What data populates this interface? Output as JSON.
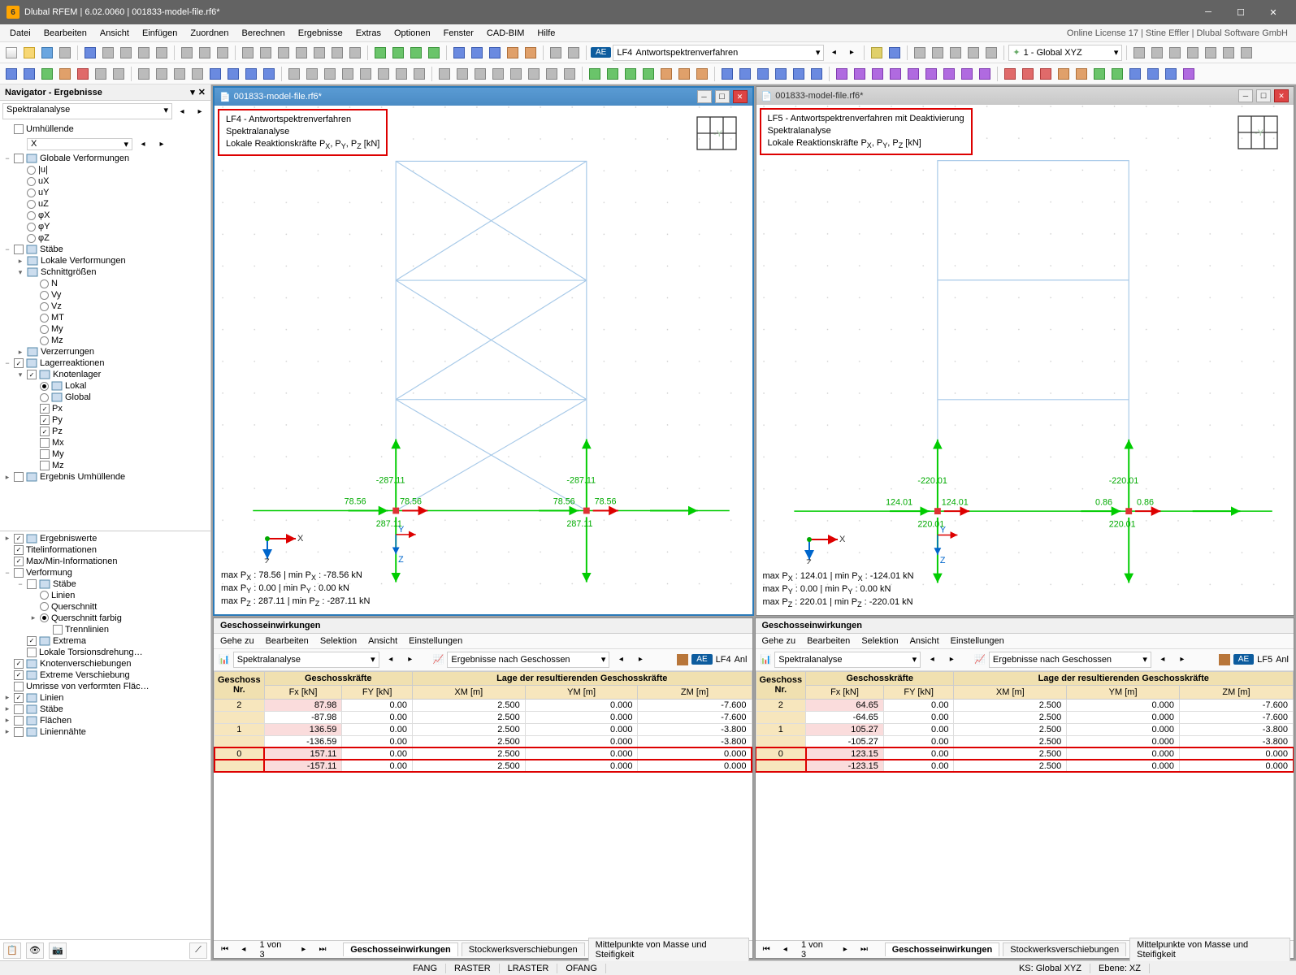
{
  "window": {
    "title": "Dlubal RFEM | 6.02.0060 | 001833-model-file.rf6*",
    "license": "Online License 17 | Stine Effler | Dlubal Software GmbH"
  },
  "menu": [
    "Datei",
    "Bearbeiten",
    "Ansicht",
    "Einfügen",
    "Zuordnen",
    "Berechnen",
    "Ergebnisse",
    "Extras",
    "Optionen",
    "Fenster",
    "CAD-BIM",
    "Hilfe"
  ],
  "tb1": {
    "pill": "AE",
    "lf": "LF4",
    "lfname": "Antwortspektrenverfahren",
    "global": "1 - Global XYZ"
  },
  "navigator": {
    "title": "Navigator - Ergebnisse",
    "combo": "Spektralanalyse",
    "tree": [
      {
        "d": 0,
        "exp": "",
        "chk": "off",
        "t": "Umhüllende"
      },
      {
        "d": 1,
        "exp": "",
        "cmb": "X"
      },
      {
        "d": 0,
        "exp": "−",
        "chk": "off",
        "t": "Globale Verformungen",
        "ico": "g"
      },
      {
        "d": 1,
        "rad": "off",
        "t": "|u|"
      },
      {
        "d": 1,
        "rad": "off",
        "t": "uX"
      },
      {
        "d": 1,
        "rad": "off",
        "t": "uY"
      },
      {
        "d": 1,
        "rad": "off",
        "t": "uZ"
      },
      {
        "d": 1,
        "rad": "off",
        "t": "φX"
      },
      {
        "d": 1,
        "rad": "off",
        "t": "φY"
      },
      {
        "d": 1,
        "rad": "off",
        "t": "φZ"
      },
      {
        "d": 0,
        "exp": "−",
        "chk": "off",
        "t": "Stäbe",
        "ico": "m"
      },
      {
        "d": 1,
        "exp": "▸",
        "t": "Lokale Verformungen",
        "ico": "lv"
      },
      {
        "d": 1,
        "exp": "▾",
        "t": "Schnittgrößen",
        "ico": "sg"
      },
      {
        "d": 2,
        "rad": "off",
        "t": "N"
      },
      {
        "d": 2,
        "rad": "off",
        "t": "Vy"
      },
      {
        "d": 2,
        "rad": "off",
        "t": "Vz"
      },
      {
        "d": 2,
        "rad": "off",
        "t": "MT"
      },
      {
        "d": 2,
        "rad": "off",
        "t": "My"
      },
      {
        "d": 2,
        "rad": "off",
        "t": "Mz"
      },
      {
        "d": 1,
        "exp": "▸",
        "t": "Verzerrungen",
        "ico": "vz"
      },
      {
        "d": 0,
        "exp": "−",
        "chk": "on",
        "t": "Lagerreaktionen",
        "ico": "lr"
      },
      {
        "d": 1,
        "exp": "▾",
        "chk": "on",
        "t": "Knotenlager",
        "ico": "kn"
      },
      {
        "d": 2,
        "rad": "on",
        "t": "Lokal",
        "ico": "ax"
      },
      {
        "d": 2,
        "rad": "off",
        "t": "Global",
        "ico": "ax"
      },
      {
        "d": 2,
        "chk": "on",
        "t": "Px"
      },
      {
        "d": 2,
        "chk": "on",
        "t": "Py"
      },
      {
        "d": 2,
        "chk": "on",
        "t": "Pz"
      },
      {
        "d": 2,
        "chk": "off",
        "t": "Mx"
      },
      {
        "d": 2,
        "chk": "off",
        "t": "My"
      },
      {
        "d": 2,
        "chk": "off",
        "t": "Mz"
      },
      {
        "d": 0,
        "exp": "▸",
        "chk": "off",
        "t": "Ergebnis Umhüllende",
        "ico": "eu"
      }
    ],
    "tree2": [
      {
        "d": 0,
        "exp": "▸",
        "chk": "on",
        "t": "Ergebniswerte",
        "ico": "r"
      },
      {
        "d": 0,
        "chk": "on",
        "t": "Titelinformationen"
      },
      {
        "d": 0,
        "chk": "on",
        "t": "Max/Min-Informationen"
      },
      {
        "d": 0,
        "exp": "−",
        "chk": "off",
        "t": "Verformung"
      },
      {
        "d": 1,
        "exp": "−",
        "chk": "off",
        "t": "Stäbe",
        "ico": "m"
      },
      {
        "d": 2,
        "rad": "off",
        "t": "Linien"
      },
      {
        "d": 2,
        "rad": "off",
        "t": "Querschnitt"
      },
      {
        "d": 2,
        "exp": "▸",
        "rad": "on",
        "t": "Querschnitt farbig"
      },
      {
        "d": 3,
        "chk": "off",
        "t": "Trennlinien"
      },
      {
        "d": 1,
        "chk": "on",
        "t": "Extrema",
        "ico": "ex"
      },
      {
        "d": 1,
        "chk": "off",
        "t": "Lokale Torsionsdrehung…"
      },
      {
        "d": 0,
        "chk": "on",
        "t": "Knotenverschiebungen",
        "ico": "kv"
      },
      {
        "d": 0,
        "chk": "on",
        "t": "Extreme Verschiebung",
        "ico": "ev"
      },
      {
        "d": 0,
        "chk": "off",
        "t": "Umrisse von verformten Fläc…"
      },
      {
        "d": 0,
        "exp": "▸",
        "chk": "on",
        "t": "Linien",
        "ico": "ln"
      },
      {
        "d": 0,
        "exp": "▸",
        "chk": "off",
        "t": "Stäbe",
        "ico": "m"
      },
      {
        "d": 0,
        "exp": "▸",
        "chk": "off",
        "t": "Flächen",
        "ico": "fl"
      },
      {
        "d": 0,
        "exp": "▸",
        "chk": "off",
        "t": "Liniennähte",
        "ico": "lnn"
      }
    ]
  },
  "views": [
    {
      "doc": "001833-model-file.rf6*",
      "active": true,
      "info": [
        "LF4 - Antwortspektrenverfahren",
        "Spektralanalyse",
        "Lokale Reaktionskräfte PX, PY, PZ [kN]"
      ],
      "labels": {
        "top_l": "-287.11",
        "top_r": "-287.11",
        "px_l": "78.56",
        "px_l2": "78.56",
        "px_r": "78.56",
        "px_r2": "78.56",
        "bot_l": "287.11",
        "bot_r": "287.11"
      },
      "stats": [
        "max PX : 78.56 | min PX : -78.56 kN",
        "max PY : 0.00 | min PY : 0.00 kN",
        "max PZ : 287.11 | min PZ : -287.11 kN"
      ]
    },
    {
      "doc": "001833-model-file.rf6*",
      "active": false,
      "info": [
        "LF5 - Antwortspektrenverfahren mit Deaktivierung",
        "Spektralanalyse",
        "Lokale Reaktionskräfte PX, PY, PZ [kN]"
      ],
      "labels": {
        "top_l": "-220.01",
        "top_r": "-220.01",
        "px_l": "124.01",
        "px_l2": "124.01",
        "px_r": "0.86",
        "px_r2": "0.86",
        "bot_l": "220.01",
        "bot_r": "220.01"
      },
      "stats": [
        "max PX : 124.01 | min PX : -124.01 kN",
        "max PY : 0.00 | min PY : 0.00 kN",
        "max PZ : 220.01 | min PZ : -220.01 kN"
      ]
    }
  ],
  "tables": {
    "title": "Geschosseinwirkungen",
    "menu": [
      "Gehe zu",
      "Bearbeiten",
      "Selektion",
      "Ansicht",
      "Einstellungen"
    ],
    "combo1": "Spektralanalyse",
    "combo2": "Ergebnisse nach Geschossen",
    "pill": "AE",
    "lf_left": "LF4",
    "lf_right": "LF5",
    "anl": "Anl",
    "cols_top": [
      "Geschoss",
      "Geschosskräfte",
      "Lage der resultierenden Geschosskräfte"
    ],
    "cols": [
      "Nr.",
      "Fx [kN]",
      "FY [kN]",
      "XM [m]",
      "YM [m]",
      "ZM [m]"
    ],
    "rows_left": [
      [
        "2",
        "87.98",
        "0.00",
        "2.500",
        "0.000",
        "-7.600"
      ],
      [
        "",
        "-87.98",
        "0.00",
        "2.500",
        "0.000",
        "-7.600"
      ],
      [
        "1",
        "136.59",
        "0.00",
        "2.500",
        "0.000",
        "-3.800"
      ],
      [
        "",
        "-136.59",
        "0.00",
        "2.500",
        "0.000",
        "-3.800"
      ],
      [
        "0",
        "157.11",
        "0.00",
        "2.500",
        "0.000",
        "0.000"
      ],
      [
        "",
        "-157.11",
        "0.00",
        "2.500",
        "0.000",
        "0.000"
      ]
    ],
    "rows_right": [
      [
        "2",
        "64.65",
        "0.00",
        "2.500",
        "0.000",
        "-7.600"
      ],
      [
        "",
        "-64.65",
        "0.00",
        "2.500",
        "0.000",
        "-7.600"
      ],
      [
        "1",
        "105.27",
        "0.00",
        "2.500",
        "0.000",
        "-3.800"
      ],
      [
        "",
        "-105.27",
        "0.00",
        "2.500",
        "0.000",
        "-3.800"
      ],
      [
        "0",
        "123.15",
        "0.00",
        "2.500",
        "0.000",
        "0.000"
      ],
      [
        "",
        "-123.15",
        "0.00",
        "2.500",
        "0.000",
        "0.000"
      ]
    ],
    "pager": "1 von 3",
    "tabs": [
      "Geschosseinwirkungen",
      "Stockwerksverschiebungen",
      "Mittelpunkte von Masse und Steifigkeit"
    ]
  },
  "status": {
    "snap": [
      "FANG",
      "RASTER",
      "LRASTER",
      "OFANG"
    ],
    "ks": "KS: Global XYZ",
    "ebene": "Ebene: XZ"
  }
}
